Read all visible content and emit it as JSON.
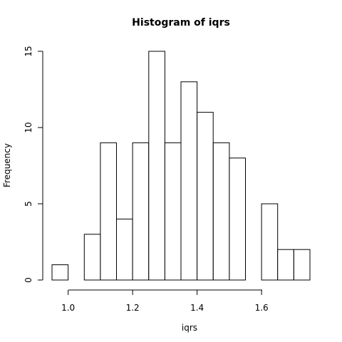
{
  "chart_data": {
    "type": "bar",
    "title": "Histogram of iqrs",
    "xlabel": "iqrs",
    "ylabel": "Frequency",
    "bin_edges": [
      0.95,
      1.0,
      1.05,
      1.1,
      1.15,
      1.2,
      1.25,
      1.3,
      1.35,
      1.4,
      1.45,
      1.5,
      1.55,
      1.6,
      1.65,
      1.7,
      1.75
    ],
    "values": [
      1,
      0,
      3,
      9,
      4,
      9,
      15,
      9,
      13,
      11,
      9,
      8,
      0,
      5,
      2,
      2
    ],
    "xlim": [
      0.95,
      1.75
    ],
    "ylim": [
      0,
      15
    ],
    "xticks": [
      "1.0",
      "1.2",
      "1.4",
      "1.6"
    ],
    "yticks": [
      "0",
      "5",
      "10",
      "15"
    ],
    "grid": false,
    "colors": {
      "bar_fill": "#ffffff",
      "bar_stroke": "#000000"
    }
  }
}
